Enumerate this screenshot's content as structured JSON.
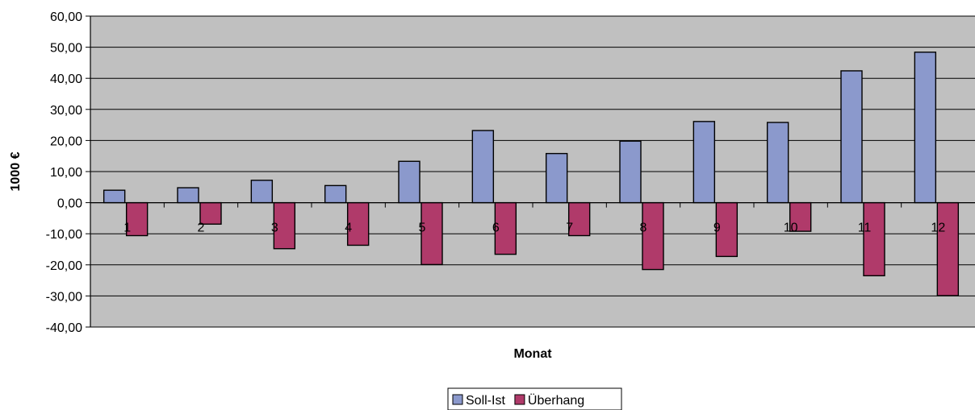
{
  "chart_data": {
    "type": "bar",
    "title": "",
    "xlabel": "Monat",
    "ylabel": "1000 €",
    "ylim": [
      -40,
      60
    ],
    "y_step": 10,
    "y_tick_labels": [
      "60,00",
      "50,00",
      "40,00",
      "30,00",
      "20,00",
      "10,00",
      "0,00",
      "-10,00",
      "-20,00",
      "-30,00",
      "-40,00"
    ],
    "categories": [
      "1",
      "2",
      "3",
      "4",
      "5",
      "6",
      "7",
      "8",
      "9",
      "10",
      "11",
      "12"
    ],
    "series": [
      {
        "name": "Soll-Ist",
        "color": "#8B99CC",
        "values": [
          4.0,
          4.8,
          7.2,
          5.5,
          13.3,
          23.2,
          15.8,
          19.8,
          26.1,
          25.8,
          42.4,
          48.4
        ]
      },
      {
        "name": "Überhang",
        "color": "#B03A6A",
        "values": [
          -10.6,
          -6.9,
          -14.8,
          -13.7,
          -19.9,
          -16.6,
          -10.6,
          -21.5,
          -17.3,
          -9.2,
          -23.5,
          -29.9
        ]
      }
    ],
    "grid": true,
    "plot_background": "#C0C0C0",
    "legend_position": "bottom"
  }
}
